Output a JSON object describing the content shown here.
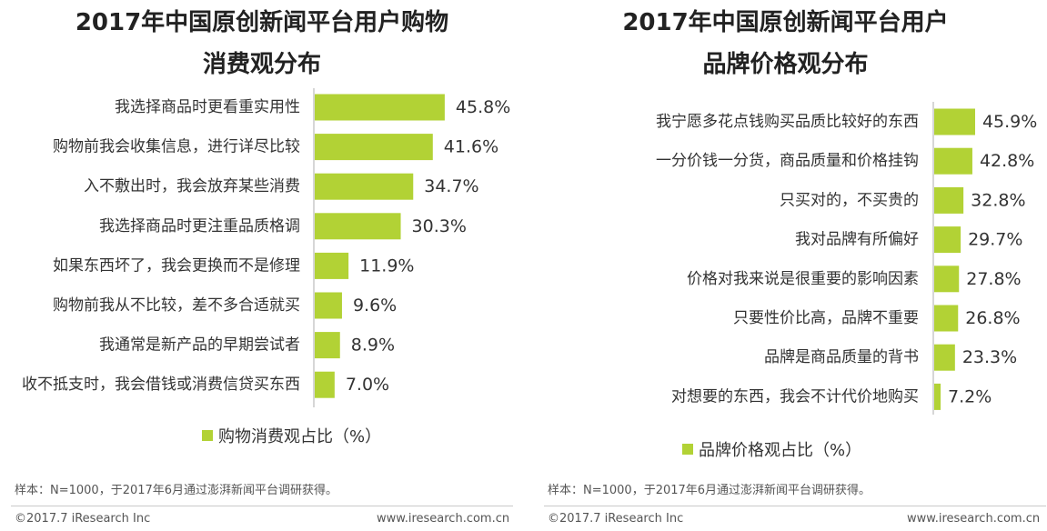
{
  "colors": {
    "bar": "#b2d235",
    "axis": "#c9c9c9",
    "text": "#333333"
  },
  "chart_data": [
    {
      "type": "bar",
      "orientation": "horizontal",
      "title_lines": [
        "2017年中国原创新闻平台用户购物",
        "消费观分布"
      ],
      "categories": [
        "我选择商品时更看重实用性",
        "购物前我会收集信息，进行详尽比较",
        "入不敷出时，我会放弃某些消费",
        "我选择商品时更注重品质格调",
        "如果东西坏了，我会更换而不是修理",
        "购物前我从不比较，差不多合适就买",
        "我通常是新产品的早期尝试者",
        "收不抵支时，我会借钱或消费信贷买东西"
      ],
      "values": [
        45.8,
        41.6,
        34.7,
        30.3,
        11.9,
        9.6,
        8.9,
        7.0
      ],
      "value_labels": [
        "45.8%",
        "41.6%",
        "34.7%",
        "30.3%",
        "11.9%",
        "9.6%",
        "8.9%",
        "7.0%"
      ],
      "legend": "购物消费观占比（%）",
      "xlim": [
        0,
        100
      ]
    },
    {
      "type": "bar",
      "orientation": "horizontal",
      "title_lines": [
        "2017年中国原创新闻平台用户",
        "品牌价格观分布"
      ],
      "categories": [
        "我宁愿多花点钱购买品质比较好的东西",
        "一分价钱一分货，商品质量和价格挂钩",
        "只买对的，不买贵的",
        "我对品牌有所偏好",
        "价格对我来说是很重要的影响因素",
        "只要性价比高，品牌不重要",
        "品牌是商品质量的背书",
        "对想要的东西，我会不计代价地购买"
      ],
      "values": [
        45.9,
        42.8,
        32.8,
        29.7,
        27.8,
        26.8,
        23.3,
        7.2
      ],
      "value_labels": [
        "45.9%",
        "42.8%",
        "32.8%",
        "29.7%",
        "27.8%",
        "26.8%",
        "23.3%",
        "7.2%"
      ],
      "legend": "品牌价格观占比（%）",
      "xlim": [
        0,
        100
      ]
    }
  ],
  "notes": {
    "left_sample": "样本：N=1000，于2017年6月通过澎湃新闻平台调研获得。",
    "right_sample": "样本：N=1000，于2017年6月通过澎湃新闻平台调研获得。"
  },
  "footer": {
    "copyright": "©2017.7 iResearch Inc",
    "website": "www.iresearch.com.cn"
  }
}
